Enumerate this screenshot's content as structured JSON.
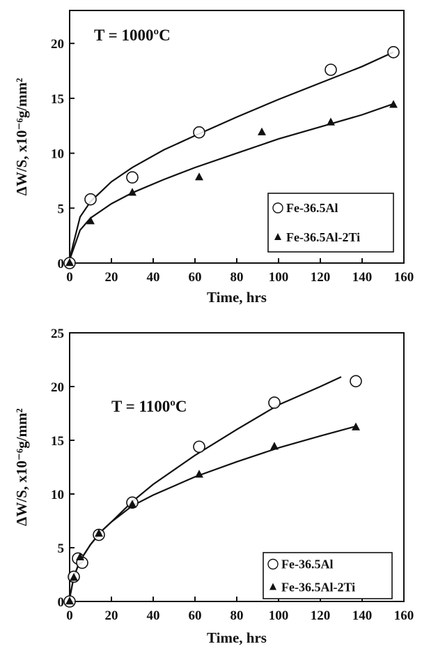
{
  "chart_data": [
    {
      "type": "scatter",
      "annotation": "T = 1000ºC",
      "xlabel": "Time, hrs",
      "ylabel": "ΔW/S, x10⁻⁶g/mm²",
      "xlim": [
        0,
        160
      ],
      "ylim": [
        0,
        23
      ],
      "xticks": [
        "0",
        "20",
        "40",
        "60",
        "80",
        "100",
        "120",
        "140",
        "160"
      ],
      "yticks": [
        "0",
        "5",
        "10",
        "15",
        "20"
      ],
      "legend_position": "bottom-right",
      "series": [
        {
          "name": "Fe-36.5Al",
          "marker": "open-circle",
          "x": [
            0,
            10,
            30,
            62,
            125,
            155
          ],
          "y": [
            0,
            5.8,
            7.8,
            11.9,
            17.6,
            19.2
          ],
          "fit": [
            [
              0,
              0.4
            ],
            [
              5,
              4.2
            ],
            [
              10,
              5.6
            ],
            [
              20,
              7.4
            ],
            [
              30,
              8.7
            ],
            [
              45,
              10.3
            ],
            [
              60,
              11.6
            ],
            [
              80,
              13.3
            ],
            [
              100,
              14.9
            ],
            [
              120,
              16.4
            ],
            [
              140,
              17.9
            ],
            [
              155,
              19.2
            ]
          ]
        },
        {
          "name": "Fe-36.5Al-2Ti",
          "marker": "filled-triangle",
          "x": [
            0,
            10,
            30,
            62,
            92,
            125,
            155
          ],
          "y": [
            0,
            3.8,
            6.4,
            7.8,
            11.9,
            12.8,
            14.4
          ],
          "fit": [
            [
              0,
              0.3
            ],
            [
              5,
              3.0
            ],
            [
              10,
              4.1
            ],
            [
              20,
              5.4
            ],
            [
              30,
              6.4
            ],
            [
              45,
              7.6
            ],
            [
              60,
              8.7
            ],
            [
              80,
              10.0
            ],
            [
              100,
              11.3
            ],
            [
              120,
              12.4
            ],
            [
              140,
              13.5
            ],
            [
              155,
              14.5
            ]
          ]
        }
      ]
    },
    {
      "type": "scatter",
      "annotation": "T = 1100ºC",
      "xlabel": "Time, hrs",
      "ylabel": "ΔW/S, x10⁻⁶g/mm²",
      "xlim": [
        0,
        160
      ],
      "ylim": [
        0,
        25
      ],
      "xticks": [
        "0",
        "20",
        "40",
        "60",
        "80",
        "100",
        "120",
        "140",
        "160"
      ],
      "yticks": [
        "0",
        "5",
        "10",
        "15",
        "20",
        "25"
      ],
      "legend_position": "bottom-right",
      "series": [
        {
          "name": "Fe-36.5Al",
          "marker": "open-circle",
          "x": [
            0,
            2,
            4,
            6,
            14,
            30,
            62,
            98,
            137
          ],
          "y": [
            0,
            2.3,
            4.0,
            3.6,
            6.2,
            9.2,
            14.4,
            18.5,
            20.5
          ],
          "fit": [
            [
              0,
              0.3
            ],
            [
              2,
              2.3
            ],
            [
              5,
              3.8
            ],
            [
              10,
              5.3
            ],
            [
              15,
              6.5
            ],
            [
              20,
              7.4
            ],
            [
              30,
              9.3
            ],
            [
              40,
              10.9
            ],
            [
              60,
              13.6
            ],
            [
              80,
              16.0
            ],
            [
              100,
              18.3
            ],
            [
              120,
              20.0
            ],
            [
              130,
              20.9
            ]
          ]
        },
        {
          "name": "Fe-36.5Al-2Ti",
          "marker": "filled-triangle",
          "x": [
            0,
            2,
            5,
            14,
            30,
            62,
            98,
            137
          ],
          "y": [
            0,
            2.2,
            4.1,
            6.3,
            9.0,
            11.8,
            14.4,
            16.2
          ],
          "fit": [
            [
              0,
              0.3
            ],
            [
              2,
              2.3
            ],
            [
              5,
              3.8
            ],
            [
              10,
              5.3
            ],
            [
              15,
              6.5
            ],
            [
              20,
              7.4
            ],
            [
              30,
              8.9
            ],
            [
              40,
              9.9
            ],
            [
              60,
              11.6
            ],
            [
              80,
              13.0
            ],
            [
              100,
              14.3
            ],
            [
              120,
              15.4
            ],
            [
              137,
              16.3
            ]
          ]
        }
      ]
    }
  ]
}
